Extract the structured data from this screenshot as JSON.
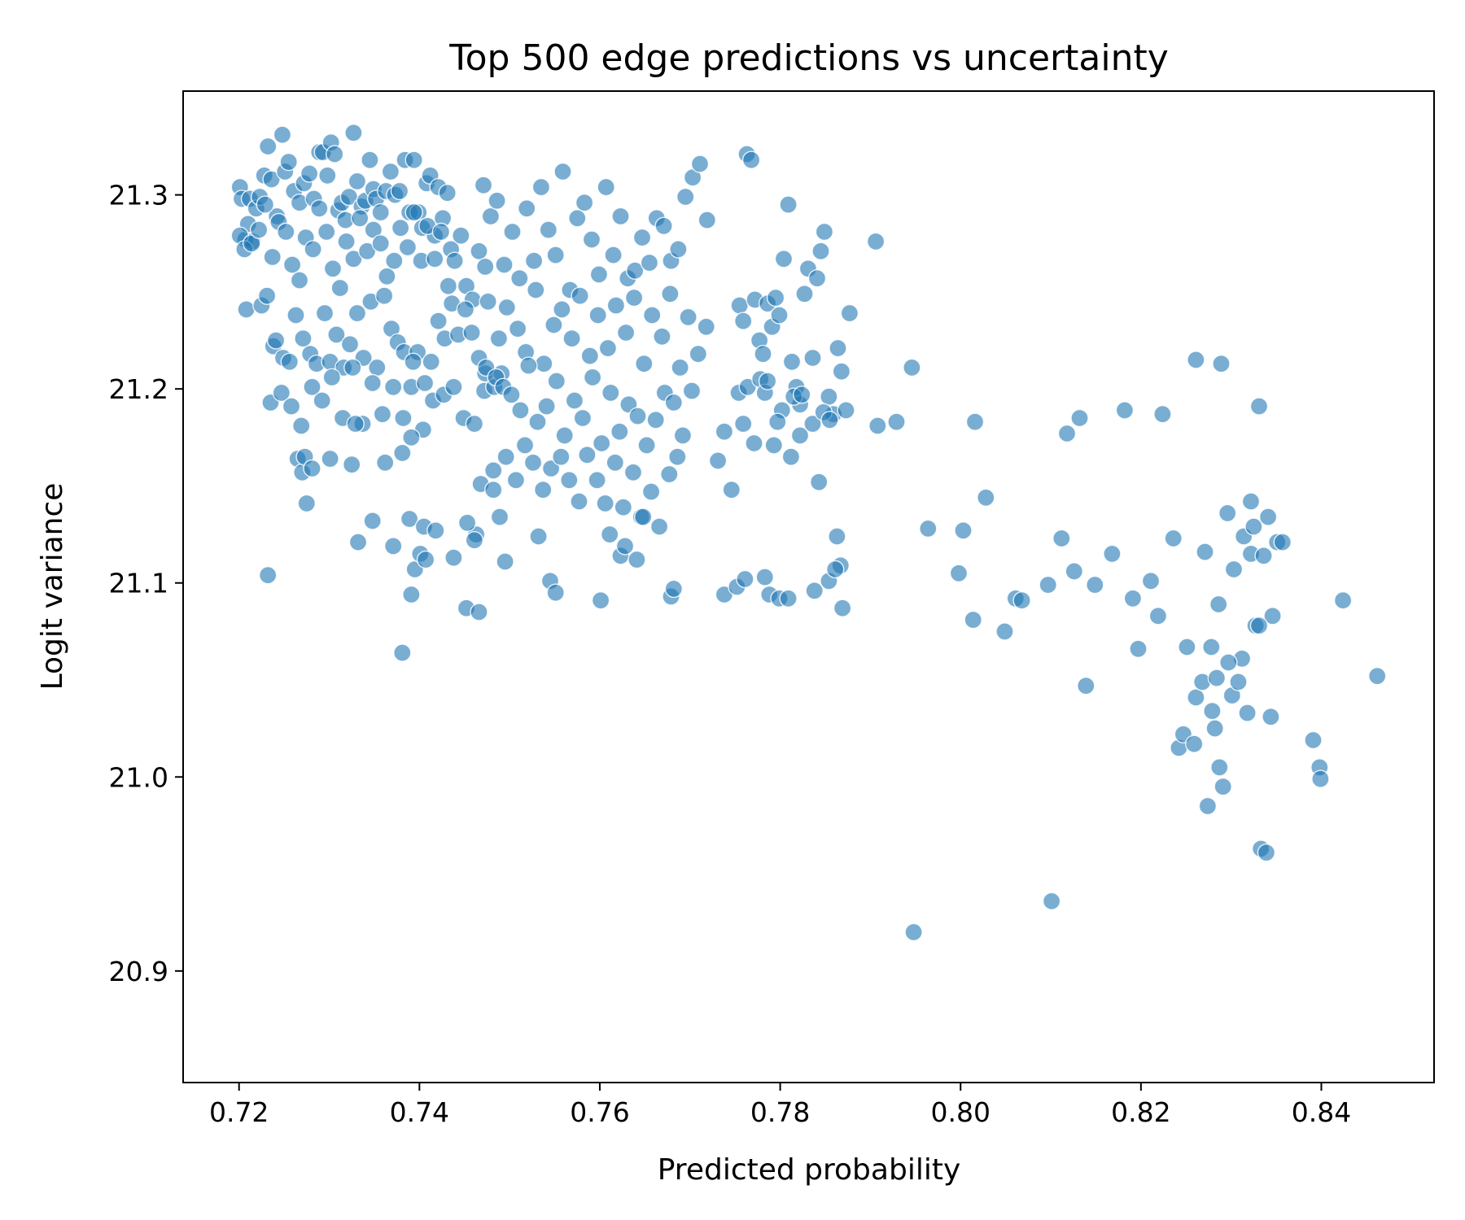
{
  "chart_data": {
    "type": "scatter",
    "title": "Top 500 edge predictions vs uncertainty",
    "xlabel": "Predicted probability",
    "ylabel": "Logit variance",
    "xlim": [
      0.7138,
      0.8525
    ],
    "ylim": [
      20.8425,
      21.3535
    ],
    "xticks": [
      0.72,
      0.74,
      0.76,
      0.78,
      0.8,
      0.82,
      0.84
    ],
    "xtick_labels": [
      "0.72",
      "0.74",
      "0.76",
      "0.78",
      "0.80",
      "0.82",
      "0.84"
    ],
    "yticks": [
      20.9,
      21.0,
      21.1,
      21.2,
      21.3
    ],
    "ytick_labels": [
      "20.9",
      "21.0",
      "21.1",
      "21.2",
      "21.3"
    ],
    "grid": false,
    "legend": "none",
    "marker_color": "#1f77b4",
    "marker_alpha": 0.6,
    "series": [
      {
        "x": [
          0.7201,
          0.7203,
          0.7207,
          0.721,
          0.7212,
          0.7215,
          0.7219,
          0.7223,
          0.7228,
          0.7232,
          0.7236,
          0.7242,
          0.7248,
          0.7251,
          0.7255,
          0.7261,
          0.7267,
          0.7272,
          0.7278,
          0.7283,
          0.7289,
          0.7293,
          0.7298,
          0.7302,
          0.7306,
          0.731,
          0.7314,
          0.7318,
          0.7322,
          0.7327,
          0.7331,
          0.7336,
          0.734,
          0.7345,
          0.7349,
          0.7352,
          0.7357,
          0.7363,
          0.7368,
          0.7373,
          0.7378,
          0.7384,
          0.7389,
          0.7394,
          0.7399,
          0.7403,
          0.7408,
          0.7412,
          0.7417,
          0.7421,
          0.7426,
          0.7431,
          0.7435,
          0.7201,
          0.7206,
          0.7214,
          0.7222,
          0.7229,
          0.7237,
          0.7244,
          0.7252,
          0.7259,
          0.7267,
          0.7274,
          0.7282,
          0.7289,
          0.7297,
          0.7304,
          0.7312,
          0.7319,
          0.7327,
          0.7334,
          0.7342,
          0.7349,
          0.7357,
          0.7364,
          0.7372,
          0.7379,
          0.7387,
          0.7394,
          0.7402,
          0.7409,
          0.7417,
          0.7424,
          0.7432,
          0.7439,
          0.7446,
          0.7452,
          0.7459,
          0.7466,
          0.7473,
          0.7208,
          0.7225,
          0.7231,
          0.7238,
          0.7241,
          0.7249,
          0.7256,
          0.7263,
          0.7271,
          0.7279,
          0.7286,
          0.7295,
          0.7301,
          0.7308,
          0.7316,
          0.7323,
          0.7331,
          0.7338,
          0.7346,
          0.7353,
          0.7361,
          0.7369,
          0.7376,
          0.7383,
          0.7391,
          0.7398,
          0.7406,
          0.7413,
          0.7421,
          0.7428,
          0.7436,
          0.7443,
          0.7451,
          0.7458,
          0.7466,
          0.7473,
          0.7235,
          0.7247,
          0.7258,
          0.7269,
          0.7281,
          0.7292,
          0.7303,
          0.7315,
          0.7326,
          0.7337,
          0.7348,
          0.7359,
          0.7371,
          0.7382,
          0.7393,
          0.7404,
          0.7415,
          0.7427,
          0.7438,
          0.7449,
          0.7461,
          0.7472,
          0.7483,
          0.7265,
          0.727,
          0.7273,
          0.7275,
          0.7281,
          0.7301,
          0.7325,
          0.7332,
          0.7348,
          0.7371,
          0.7389,
          0.7395,
          0.7405,
          0.7418,
          0.7438,
          0.7463,
          0.7468,
          0.7482,
          0.7232,
          0.7329,
          0.7362,
          0.7381,
          0.7391,
          0.7381,
          0.7401,
          0.7407,
          0.7453,
          0.7491,
          0.7391,
          0.7471,
          0.7479,
          0.7486,
          0.7494,
          0.7503,
          0.7511,
          0.7519,
          0.7527,
          0.7535,
          0.7543,
          0.7551,
          0.7559,
          0.7567,
          0.7575,
          0.7583,
          0.7591,
          0.7599,
          0.7607,
          0.7615,
          0.7623,
          0.7631,
          0.7639,
          0.7647,
          0.7655,
          0.7663,
          0.7671,
          0.7679,
          0.7687,
          0.7695,
          0.7703,
          0.7711,
          0.7719,
          0.7476,
          0.7488,
          0.7497,
          0.7509,
          0.7518,
          0.7529,
          0.7538,
          0.7549,
          0.7558,
          0.7569,
          0.7578,
          0.7589,
          0.7598,
          0.7609,
          0.7618,
          0.7629,
          0.7638,
          0.7649,
          0.7658,
          0.7669,
          0.7678,
          0.7689,
          0.7698,
          0.7709,
          0.7718,
          0.7474,
          0.7485,
          0.7493,
          0.7502,
          0.7512,
          0.7521,
          0.7531,
          0.7541,
          0.7552,
          0.7561,
          0.7572,
          0.7581,
          0.7592,
          0.7602,
          0.7612,
          0.7622,
          0.7632,
          0.7642,
          0.7652,
          0.7662,
          0.7672,
          0.7682,
          0.7692,
          0.7702,
          0.7482,
          0.7496,
          0.7507,
          0.7517,
          0.7526,
          0.7537,
          0.7546,
          0.7557,
          0.7566,
          0.7577,
          0.7586,
          0.7597,
          0.7606,
          0.7617,
          0.7626,
          0.7637,
          0.7646,
          0.7657,
          0.7666,
          0.7677,
          0.7686,
          0.7452,
          0.7461,
          0.7466,
          0.7489,
          0.7495,
          0.7532,
          0.7545,
          0.7551,
          0.7601,
          0.7611,
          0.7623,
          0.7628,
          0.7641,
          0.7648,
          0.7679,
          0.7682,
          0.7755,
          0.7759,
          0.7763,
          0.7768,
          0.7772,
          0.7777,
          0.7781,
          0.7786,
          0.7791,
          0.7795,
          0.7799,
          0.7804,
          0.7809,
          0.7813,
          0.7818,
          0.7822,
          0.7827,
          0.7831,
          0.7836,
          0.7841,
          0.7845,
          0.7849,
          0.7854,
          0.7859,
          0.7864,
          0.7868,
          0.7873,
          0.7877,
          0.7731,
          0.7738,
          0.7746,
          0.7754,
          0.7759,
          0.7764,
          0.7771,
          0.7778,
          0.7793,
          0.7802,
          0.7815,
          0.7822,
          0.7836,
          0.7848,
          0.7855,
          0.7867,
          0.7863,
          0.7843,
          0.7824,
          0.7812,
          0.7797,
          0.7783,
          0.7738,
          0.7752,
          0.7761,
          0.7783,
          0.7788,
          0.7799,
          0.7809,
          0.7838,
          0.7854,
          0.7861,
          0.7869,
          0.7786,
          0.7906,
          0.7908,
          0.7929,
          0.7946,
          0.7948,
          0.7964,
          0.7998,
          0.8003,
          0.8014,
          0.8016,
          0.8028,
          0.8049,
          0.8061,
          0.8068,
          0.8097,
          0.8101,
          0.8112,
          0.8118,
          0.8126,
          0.8132,
          0.8139,
          0.8149,
          0.8168,
          0.8182,
          0.8191,
          0.8197,
          0.8211,
          0.8219,
          0.8224,
          0.8236,
          0.8242,
          0.8251,
          0.8261,
          0.8268,
          0.8274,
          0.8279,
          0.8287,
          0.8291,
          0.8301,
          0.8308,
          0.8318,
          0.8327,
          0.8333,
          0.8346,
          0.8351,
          0.8247,
          0.8259,
          0.8271,
          0.8282,
          0.8296,
          0.8303,
          0.8314,
          0.8322,
          0.8331,
          0.8339,
          0.8344,
          0.8357,
          0.8391,
          0.8398,
          0.8399,
          0.8424,
          0.8462,
          0.8261,
          0.8289,
          0.8331,
          0.8341,
          0.8284,
          0.8312,
          0.8278,
          0.8297,
          0.8286,
          0.8322,
          0.8325,
          0.8336
        ],
        "y": [
          21.304,
          21.298,
          21.277,
          21.285,
          21.298,
          21.276,
          21.293,
          21.299,
          21.31,
          21.325,
          21.308,
          21.289,
          21.331,
          21.312,
          21.317,
          21.302,
          21.296,
          21.306,
          21.311,
          21.298,
          21.322,
          21.322,
          21.31,
          21.327,
          21.321,
          21.292,
          21.296,
          21.287,
          21.299,
          21.332,
          21.307,
          21.294,
          21.297,
          21.318,
          21.303,
          21.298,
          21.291,
          21.302,
          21.312,
          21.3,
          21.302,
          21.318,
          21.291,
          21.318,
          21.291,
          21.283,
          21.306,
          21.31,
          21.279,
          21.304,
          21.288,
          21.301,
          21.272,
          21.279,
          21.272,
          21.275,
          21.282,
          21.295,
          21.268,
          21.286,
          21.281,
          21.264,
          21.256,
          21.278,
          21.272,
          21.293,
          21.281,
          21.262,
          21.252,
          21.276,
          21.267,
          21.288,
          21.271,
          21.282,
          21.275,
          21.258,
          21.266,
          21.283,
          21.273,
          21.291,
          21.266,
          21.284,
          21.267,
          21.281,
          21.253,
          21.266,
          21.279,
          21.253,
          21.246,
          21.271,
          21.263,
          21.241,
          21.243,
          21.248,
          21.222,
          21.225,
          21.216,
          21.214,
          21.238,
          21.226,
          21.218,
          21.213,
          21.239,
          21.214,
          21.228,
          21.211,
          21.223,
          21.239,
          21.216,
          21.245,
          21.211,
          21.248,
          21.231,
          21.224,
          21.219,
          21.201,
          21.219,
          21.203,
          21.214,
          21.235,
          21.226,
          21.244,
          21.228,
          21.241,
          21.229,
          21.216,
          21.208,
          21.193,
          21.198,
          21.191,
          21.181,
          21.201,
          21.194,
          21.206,
          21.185,
          21.211,
          21.182,
          21.203,
          21.187,
          21.201,
          21.185,
          21.214,
          21.179,
          21.194,
          21.197,
          21.201,
          21.185,
          21.182,
          21.199,
          21.201,
          21.164,
          21.157,
          21.165,
          21.141,
          21.159,
          21.164,
          21.161,
          21.121,
          21.132,
          21.119,
          21.133,
          21.107,
          21.129,
          21.127,
          21.113,
          21.125,
          21.151,
          21.148,
          21.104,
          21.182,
          21.162,
          21.167,
          21.094,
          21.064,
          21.115,
          21.112,
          21.131,
          21.208,
          21.175,
          21.305,
          21.289,
          21.297,
          21.264,
          21.281,
          21.257,
          21.293,
          21.266,
          21.304,
          21.282,
          21.269,
          21.312,
          21.251,
          21.288,
          21.296,
          21.277,
          21.259,
          21.304,
          21.269,
          21.289,
          21.257,
          21.261,
          21.278,
          21.265,
          21.288,
          21.284,
          21.266,
          21.272,
          21.299,
          21.309,
          21.316,
          21.287,
          21.245,
          21.226,
          21.242,
          21.231,
          21.219,
          21.251,
          21.213,
          21.233,
          21.241,
          21.226,
          21.248,
          21.217,
          21.238,
          21.221,
          21.243,
          21.229,
          21.247,
          21.213,
          21.238,
          21.227,
          21.249,
          21.211,
          21.237,
          21.218,
          21.232,
          21.211,
          21.206,
          21.201,
          21.197,
          21.189,
          21.212,
          21.183,
          21.191,
          21.204,
          21.176,
          21.194,
          21.185,
          21.206,
          21.172,
          21.198,
          21.178,
          21.192,
          21.186,
          21.171,
          21.184,
          21.198,
          21.193,
          21.176,
          21.199,
          21.158,
          21.165,
          21.153,
          21.171,
          21.162,
          21.148,
          21.159,
          21.165,
          21.153,
          21.142,
          21.166,
          21.153,
          21.141,
          21.162,
          21.139,
          21.157,
          21.134,
          21.147,
          21.129,
          21.156,
          21.165,
          21.087,
          21.122,
          21.085,
          21.134,
          21.111,
          21.124,
          21.101,
          21.095,
          21.091,
          21.125,
          21.114,
          21.119,
          21.112,
          21.134,
          21.093,
          21.097,
          21.243,
          21.235,
          21.321,
          21.318,
          21.246,
          21.225,
          21.218,
          21.244,
          21.232,
          21.247,
          21.238,
          21.267,
          21.295,
          21.214,
          21.201,
          21.192,
          21.249,
          21.262,
          21.216,
          21.257,
          21.271,
          21.281,
          21.196,
          21.187,
          21.221,
          21.209,
          21.189,
          21.239,
          21.163,
          21.178,
          21.148,
          21.198,
          21.182,
          21.201,
          21.172,
          21.205,
          21.171,
          21.189,
          21.196,
          21.176,
          21.182,
          21.188,
          21.184,
          21.109,
          21.124,
          21.152,
          21.197,
          21.165,
          21.183,
          21.198,
          21.094,
          21.098,
          21.102,
          21.103,
          21.094,
          21.092,
          21.092,
          21.096,
          21.101,
          21.107,
          21.087,
          21.204,
          21.276,
          21.181,
          21.183,
          21.211,
          20.92,
          21.128,
          21.105,
          21.127,
          21.081,
          21.183,
          21.144,
          21.075,
          21.092,
          21.091,
          21.099,
          20.936,
          21.123,
          21.177,
          21.106,
          21.185,
          21.047,
          21.099,
          21.115,
          21.189,
          21.092,
          21.066,
          21.101,
          21.083,
          21.187,
          21.123,
          21.015,
          21.067,
          21.041,
          21.049,
          20.985,
          21.034,
          21.005,
          20.995,
          21.042,
          21.049,
          21.033,
          21.078,
          20.963,
          21.083,
          21.121,
          21.022,
          21.017,
          21.116,
          21.025,
          21.136,
          21.107,
          21.124,
          21.115,
          21.078,
          20.961,
          21.031,
          21.121,
          21.019,
          21.005,
          20.999,
          21.091,
          21.052,
          21.215,
          21.213,
          21.191,
          21.134,
          21.051,
          21.061,
          21.067,
          21.059,
          21.089,
          21.142,
          21.129,
          21.114
        ]
      }
    ]
  }
}
